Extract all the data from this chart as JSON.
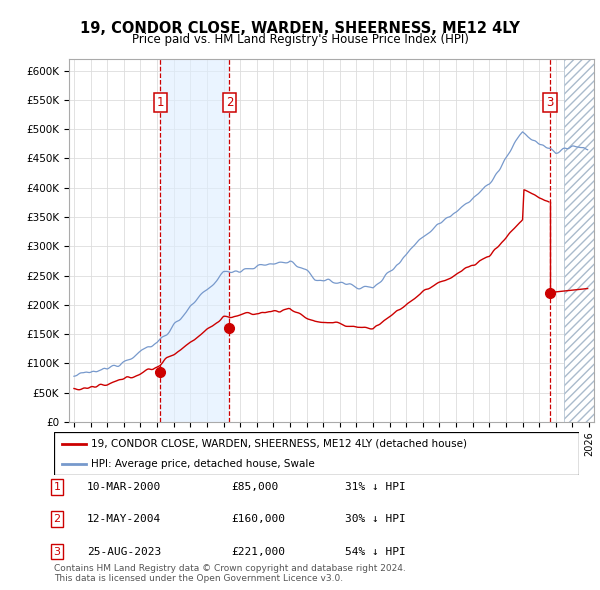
{
  "title": "19, CONDOR CLOSE, WARDEN, SHEERNESS, ME12 4LY",
  "subtitle": "Price paid vs. HM Land Registry's House Price Index (HPI)",
  "ylim": [
    0,
    620000
  ],
  "yticks": [
    0,
    50000,
    100000,
    150000,
    200000,
    250000,
    300000,
    350000,
    400000,
    450000,
    500000,
    550000,
    600000
  ],
  "xlim_start": 1994.7,
  "xlim_end": 2026.3,
  "hpi_color": "#7799cc",
  "price_color": "#cc0000",
  "vline_color": "#cc0000",
  "background_plot": "#ffffff",
  "background_band": "#ddeeff",
  "legend_label_red": "19, CONDOR CLOSE, WARDEN, SHEERNESS, ME12 4LY (detached house)",
  "legend_label_blue": "HPI: Average price, detached house, Swale",
  "footer": "Contains HM Land Registry data © Crown copyright and database right 2024.\nThis data is licensed under the Open Government Licence v3.0.",
  "sales": [
    {
      "num": 1,
      "date_str": "10-MAR-2000",
      "price": 85000,
      "pct": "31% ↓ HPI",
      "x": 2000.19
    },
    {
      "num": 2,
      "date_str": "12-MAY-2004",
      "price": 160000,
      "pct": "30% ↓ HPI",
      "x": 2004.36
    },
    {
      "num": 3,
      "date_str": "25-AUG-2023",
      "price": 221000,
      "pct": "54% ↓ HPI",
      "x": 2023.65
    }
  ],
  "hatch_start": 2024.5,
  "band_x1": 2000.19,
  "band_x2": 2004.36
}
